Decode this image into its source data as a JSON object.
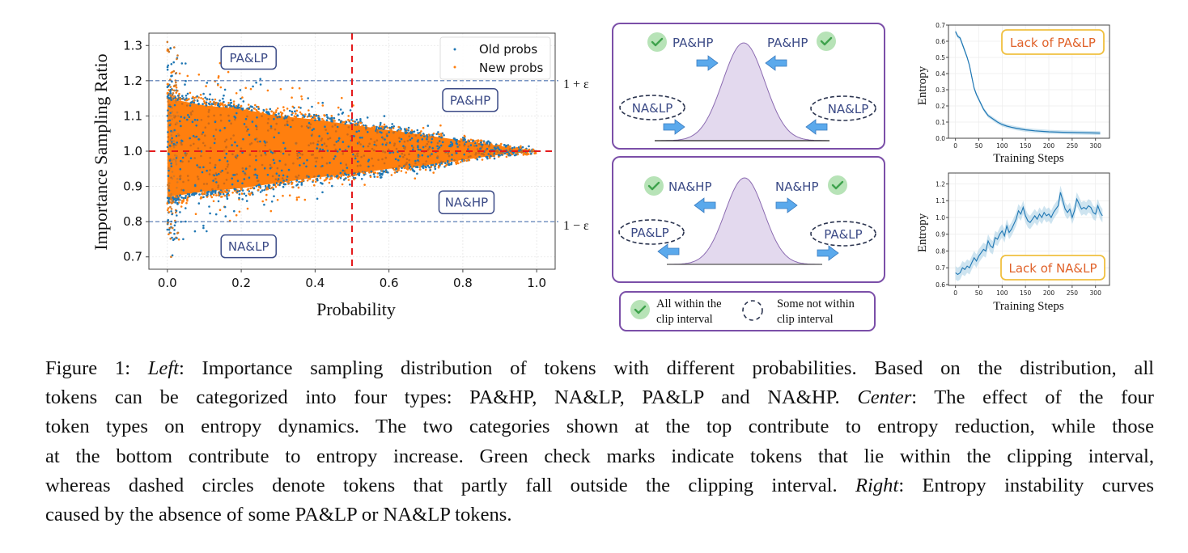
{
  "chart_data": [
    {
      "id": "scatter",
      "type": "scatter",
      "title": "",
      "xlabel": "Probability",
      "ylabel": "Importance Sampling Ratio",
      "xlim": [
        -0.05,
        1.05
      ],
      "ylim": [
        0.665,
        1.335
      ],
      "xticks": [
        0.0,
        0.2,
        0.4,
        0.6,
        0.8,
        1.0
      ],
      "xtick_labels": [
        "0.0",
        "0.2",
        "0.4",
        "0.6",
        "0.8",
        "1.0"
      ],
      "yticks": [
        0.7,
        0.8,
        0.9,
        1.0,
        1.1,
        1.2,
        1.3
      ],
      "ytick_labels": [
        "0.7",
        "0.8",
        "0.9",
        "1.0",
        "1.1",
        "1.2",
        "1.3"
      ],
      "grid": true,
      "legend": {
        "position": "top-right",
        "entries": [
          "Old probs",
          "New probs"
        ]
      },
      "series": [
        {
          "name": "Old probs",
          "color": "#1f77b4",
          "description": "Dense band centered on ratio 1.0, spread ~±0.13 at p=0 narrowing to 0 at p=1.0; sparse outliers up to ~1.3 and down to ~0.7 near p=0"
        },
        {
          "name": "New probs",
          "color": "#ff7f0e",
          "description": "Overlapping dense band, same funnel shape, drawn on top"
        }
      ],
      "band": {
        "x": [
          0.0,
          0.1,
          0.2,
          0.3,
          0.4,
          0.5,
          0.6,
          0.7,
          0.8,
          0.9,
          1.0
        ],
        "upper": [
          1.15,
          1.13,
          1.12,
          1.1,
          1.09,
          1.075,
          1.06,
          1.045,
          1.03,
          1.015,
          1.0
        ],
        "lower": [
          0.87,
          0.885,
          0.895,
          0.91,
          0.925,
          0.935,
          0.95,
          0.96,
          0.975,
          0.99,
          1.0
        ]
      },
      "reference_lines": [
        {
          "orientation": "horizontal",
          "value": 1.2,
          "style": "dashed",
          "color": "#4c72b0",
          "label": "1 + ε"
        },
        {
          "orientation": "horizontal",
          "value": 0.8,
          "style": "dashed",
          "color": "#4c72b0",
          "label": "1 − ε"
        },
        {
          "orientation": "horizontal",
          "value": 1.0,
          "style": "dashed",
          "color": "#e41a1c",
          "label": ""
        },
        {
          "orientation": "vertical",
          "value": 0.5,
          "style": "dashed",
          "color": "#e41a1c",
          "label": ""
        }
      ],
      "annotations": [
        {
          "text": "PA&LP",
          "x": 0.22,
          "y": 1.265
        },
        {
          "text": "PA&HP",
          "x": 0.82,
          "y": 1.145
        },
        {
          "text": "NA&HP",
          "x": 0.81,
          "y": 0.855
        },
        {
          "text": "NA&LP",
          "x": 0.22,
          "y": 0.73
        }
      ]
    },
    {
      "id": "entropy-lack-pa-lp",
      "type": "line",
      "title": "",
      "xlabel": "Training Steps",
      "ylabel": "Entropy",
      "xlim": [
        -15,
        330
      ],
      "ylim": [
        0.0,
        0.7
      ],
      "xticks": [
        0,
        50,
        100,
        150,
        200,
        250,
        300
      ],
      "xtick_labels": [
        "0",
        "50",
        "100",
        "150",
        "200",
        "250",
        "300"
      ],
      "yticks": [
        0.0,
        0.1,
        0.2,
        0.3,
        0.4,
        0.5,
        0.6,
        0.7
      ],
      "ytick_labels": [
        "0.0",
        "0.1",
        "0.2",
        "0.3",
        "0.4",
        "0.5",
        "0.6",
        "0.7"
      ],
      "grid": true,
      "annotation": "Lack of PA&LP",
      "series": [
        {
          "name": "Entropy",
          "color": "#1f77b4",
          "x": [
            0,
            5,
            10,
            15,
            20,
            25,
            30,
            35,
            40,
            45,
            50,
            55,
            60,
            65,
            70,
            75,
            80,
            90,
            100,
            110,
            120,
            130,
            140,
            150,
            170,
            200,
            230,
            260,
            290,
            310
          ],
          "y": [
            0.66,
            0.63,
            0.62,
            0.58,
            0.54,
            0.5,
            0.45,
            0.38,
            0.31,
            0.27,
            0.24,
            0.21,
            0.18,
            0.16,
            0.14,
            0.13,
            0.12,
            0.1,
            0.085,
            0.075,
            0.068,
            0.062,
            0.057,
            0.052,
            0.046,
            0.04,
            0.037,
            0.035,
            0.033,
            0.032
          ],
          "band_halfwidth": 0.012
        }
      ]
    },
    {
      "id": "entropy-lack-na-lp",
      "type": "line",
      "title": "",
      "xlabel": "Training Steps",
      "ylabel": "Entropy",
      "xlim": [
        -15,
        330
      ],
      "ylim": [
        0.595,
        1.265
      ],
      "xticks": [
        0,
        50,
        100,
        150,
        200,
        250,
        300
      ],
      "xtick_labels": [
        "0",
        "50",
        "100",
        "150",
        "200",
        "250",
        "300"
      ],
      "yticks": [
        0.6,
        0.7,
        0.8,
        0.9,
        1.0,
        1.1,
        1.2
      ],
      "ytick_labels": [
        "0.6",
        "0.7",
        "0.8",
        "0.9",
        "1.0",
        "1.1",
        "1.2"
      ],
      "grid": true,
      "annotation": "Lack of NA&LP",
      "series": [
        {
          "name": "Entropy",
          "color": "#1f77b4",
          "x": [
            0,
            5,
            10,
            15,
            20,
            25,
            30,
            35,
            40,
            45,
            50,
            55,
            60,
            65,
            70,
            75,
            80,
            85,
            90,
            95,
            100,
            105,
            110,
            115,
            120,
            125,
            130,
            135,
            140,
            145,
            150,
            155,
            160,
            165,
            170,
            175,
            180,
            185,
            190,
            195,
            200,
            205,
            210,
            215,
            220,
            225,
            230,
            235,
            240,
            245,
            250,
            255,
            260,
            265,
            270,
            275,
            280,
            285,
            290,
            295,
            300,
            305,
            310,
            315
          ],
          "y": [
            0.67,
            0.66,
            0.67,
            0.7,
            0.69,
            0.71,
            0.7,
            0.73,
            0.76,
            0.74,
            0.77,
            0.79,
            0.81,
            0.8,
            0.86,
            0.83,
            0.82,
            0.88,
            0.87,
            0.9,
            0.92,
            0.89,
            0.95,
            0.91,
            0.93,
            0.96,
            0.99,
            1.04,
            1.02,
            1.06,
            1.01,
            0.98,
            0.97,
            0.99,
            1.01,
            0.99,
            1.02,
            1.0,
            1.03,
            1.01,
            1.02,
            1.0,
            1.03,
            1.05,
            1.07,
            1.15,
            1.1,
            1.05,
            1.03,
            1.05,
            1.0,
            1.04,
            1.11,
            1.08,
            1.05,
            1.06,
            1.05,
            1.07,
            1.06,
            1.03,
            1.02,
            1.07,
            1.03,
            1.01
          ],
          "band_halfwidth": 0.04
        }
      ]
    }
  ],
  "center_panels": {
    "top": {
      "check_labels": [
        "PA&HP",
        "PA&HP"
      ],
      "dashed_labels": [
        "NA&LP",
        "NA&LP"
      ],
      "arrow_direction": "inward",
      "meaning": "entropy reduction"
    },
    "bottom": {
      "check_labels": [
        "NA&HP",
        "NA&HP"
      ],
      "dashed_labels": [
        "PA&LP",
        "PA&LP"
      ],
      "arrow_direction": "outward",
      "meaning": "entropy increase"
    },
    "legend": {
      "check_text_line1": "All within the",
      "check_text_line2": "clip interval",
      "dashed_text_line1": "Some not within",
      "dashed_text_line2": "clip interval"
    }
  },
  "colors": {
    "old_probs": "#1f77b4",
    "new_probs": "#ff7f0e",
    "panel_border": "#7b4fa8",
    "bell_fill": "#e3d9ee",
    "bell_stroke": "#8b6bb1",
    "arrow_fill": "#5aa9ec",
    "check_bg": "#b7e3b7",
    "check_mark": "#3fa34d",
    "label_text": "#3b4a86",
    "annotation_orange": "#e0622a",
    "annotation_border": "#f0c040",
    "red_ref": "#e41a1c",
    "blue_ref": "#4c72b0"
  },
  "caption": {
    "figure_label": "Figure 1:",
    "left_label": "Left",
    "left_text_1": ": Importance sampling distribution of tokens with different probabilities. Based on the distribution, all",
    "left_text_2": "tokens can be categorized into four types: PA&HP, NA&LP, PA&LP and NA&HP.",
    "center_label": "Center",
    "center_text_2": ": The effect of the four",
    "line3": "token types on entropy dynamics. The two categories shown at the top contribute to entropy reduction, while those",
    "line4": "at the bottom contribute to entropy increase. Green check marks indicate tokens that lie within the clipping interval,",
    "line5_a": "whereas dashed circles denote tokens that partly fall outside the clipping interval.",
    "right_label": "Right",
    "line5_b": ": Entropy instability curves",
    "line6": "caused by the absence of some PA&LP or NA&LP tokens."
  }
}
